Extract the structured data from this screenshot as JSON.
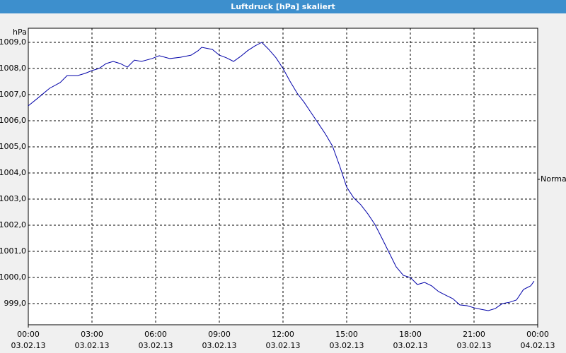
{
  "chart_data": {
    "type": "line",
    "title": "Luftdruck [hPa] skaliert",
    "y_label": "hPa",
    "xlim": [
      0,
      24
    ],
    "xticks": [
      {
        "value": 0,
        "label": "00:00",
        "sublabel": "03.02.13"
      },
      {
        "value": 3,
        "label": "03:00",
        "sublabel": "03.02.13"
      },
      {
        "value": 6,
        "label": "06:00",
        "sublabel": "03.02.13"
      },
      {
        "value": 9,
        "label": "09:00",
        "sublabel": "03.02.13"
      },
      {
        "value": 12,
        "label": "12:00",
        "sublabel": "03.02.13"
      },
      {
        "value": 15,
        "label": "15:00",
        "sublabel": "03.02.13"
      },
      {
        "value": 18,
        "label": "18:00",
        "sublabel": "03.02.13"
      },
      {
        "value": 21,
        "label": "21:00",
        "sublabel": "03.02.13"
      },
      {
        "value": 24,
        "label": "00:00",
        "sublabel": "04.02.13"
      }
    ],
    "ylim": [
      998.19,
      1009.54
    ],
    "yticks": [
      {
        "value": 999,
        "label": "999,0"
      },
      {
        "value": 1000,
        "label": "1000,0"
      },
      {
        "value": 1001,
        "label": "1001,0"
      },
      {
        "value": 1002,
        "label": "1002,0"
      },
      {
        "value": 1003,
        "label": "1003,0"
      },
      {
        "value": 1004,
        "label": "1004,0"
      },
      {
        "value": 1005,
        "label": "1005,0"
      },
      {
        "value": 1006,
        "label": "1006,0"
      },
      {
        "value": 1007,
        "label": "1007,0"
      },
      {
        "value": 1008,
        "label": "1008,0"
      },
      {
        "value": 1009,
        "label": "1009,0"
      }
    ],
    "grid": true,
    "legend": "right",
    "x": [
      0,
      0.5,
      1.0,
      1.5,
      1.83,
      2.33,
      2.67,
      3.0,
      3.33,
      3.67,
      4.0,
      4.33,
      4.67,
      5.0,
      5.33,
      5.83,
      6.17,
      6.67,
      7.17,
      7.67,
      8.0,
      8.17,
      8.67,
      9.0,
      9.33,
      9.67,
      10.0,
      10.33,
      10.67,
      11.0,
      11.33,
      11.67,
      12.0,
      12.33,
      12.67,
      13.0,
      13.33,
      13.67,
      14.0,
      14.33,
      14.67,
      15.0,
      15.33,
      15.67,
      16.0,
      16.33,
      16.67,
      17.0,
      17.33,
      17.67,
      18.0,
      18.33,
      18.67,
      19.0,
      19.33,
      19.67,
      20.0,
      20.33,
      20.67,
      21.0,
      21.33,
      21.67,
      22.0,
      22.33,
      22.67,
      23.0,
      23.33,
      23.67,
      23.83
    ],
    "series": [
      {
        "name": "Normal",
        "color": "#0000a8",
        "values": [
          1006.57,
          1006.9,
          1007.24,
          1007.46,
          1007.73,
          1007.73,
          1007.81,
          1007.92,
          1008.0,
          1008.19,
          1008.27,
          1008.19,
          1008.05,
          1008.32,
          1008.27,
          1008.38,
          1008.49,
          1008.38,
          1008.43,
          1008.51,
          1008.68,
          1008.81,
          1008.73,
          1008.51,
          1008.41,
          1008.27,
          1008.46,
          1008.68,
          1008.86,
          1009.0,
          1008.73,
          1008.41,
          1008.0,
          1007.51,
          1007.05,
          1006.7,
          1006.3,
          1005.89,
          1005.49,
          1005.03,
          1004.27,
          1003.46,
          1003.05,
          1002.78,
          1002.43,
          1002.03,
          1001.49,
          1000.95,
          1000.41,
          1000.08,
          1000.0,
          999.73,
          999.81,
          999.68,
          999.46,
          999.32,
          999.19,
          998.95,
          998.92,
          998.84,
          998.78,
          998.73,
          998.81,
          999.0,
          999.05,
          999.14,
          999.54,
          999.68,
          999.86
        ]
      }
    ]
  }
}
